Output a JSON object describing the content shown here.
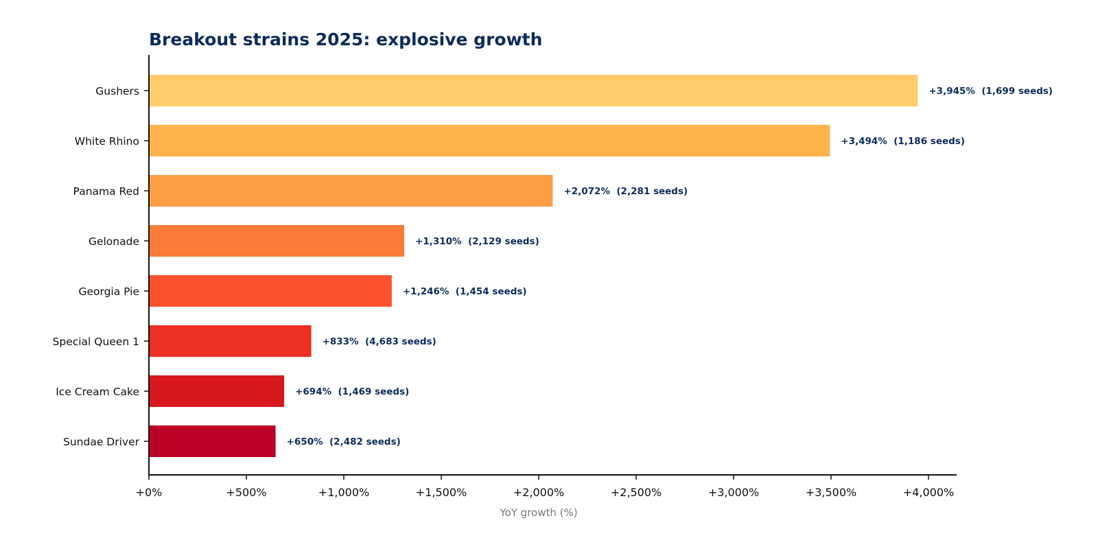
{
  "chart_data": {
    "type": "bar",
    "orientation": "horizontal",
    "title": "Breakout strains 2025: explosive growth",
    "xlabel": "YoY growth (%)",
    "ylabel": "",
    "xlim": [
      0,
      4000
    ],
    "xticks": [
      0,
      500,
      1000,
      1500,
      2000,
      2500,
      3000,
      3500,
      4000
    ],
    "xtick_labels": [
      "+0%",
      "+500%",
      "+1,000%",
      "+1,500%",
      "+2,000%",
      "+2,500%",
      "+3,000%",
      "+3,500%",
      "+4,000%"
    ],
    "grid": false,
    "categories": [
      "Gushers",
      "White Rhino",
      "Panama Red",
      "Gelonade",
      "Georgia Pie",
      "Special Queen 1",
      "Ice Cream Cake",
      "Sundae Driver"
    ],
    "values": [
      3945,
      3494,
      2072,
      1310,
      1246,
      833,
      694,
      650
    ],
    "seeds": [
      1699,
      1186,
      2281,
      2129,
      1454,
      4683,
      1469,
      2482
    ],
    "data_labels": [
      "+3,945%  (1,699 seeds)",
      "+3,494%  (1,186 seeds)",
      "+2,072%  (2,281 seeds)",
      "+1,310%  (2,129 seeds)",
      "+1,246%  (1,454 seeds)",
      "+833%  (4,683 seeds)",
      "+694%  (1,469 seeds)",
      "+650%  (2,482 seeds)"
    ],
    "colors": [
      "#FECC6B",
      "#FEB24C",
      "#FD9E44",
      "#FC7B38",
      "#FC522D",
      "#EB2F23",
      "#D7191F",
      "#BD0026"
    ]
  }
}
